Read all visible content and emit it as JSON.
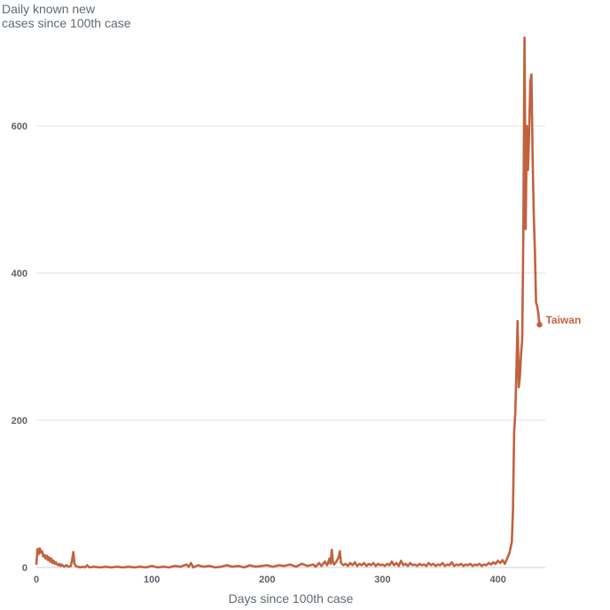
{
  "colors": {
    "series": "#c1623e",
    "grid": "#e3e3e3",
    "text": "#5f6a72"
  },
  "chart_data": {
    "type": "line",
    "title": "",
    "ylabel": "Daily known new\ncases since 100th case",
    "xlabel": "Days since 100th case",
    "xlim": [
      0,
      441
    ],
    "ylim": [
      0,
      735
    ],
    "x_ticks": [
      0,
      100,
      200,
      300,
      400
    ],
    "y_ticks": [
      0,
      200,
      400,
      600
    ],
    "grid": "horizontal",
    "series": [
      {
        "name": "Taiwan",
        "label_position": "end",
        "points": [
          [
            0,
            5
          ],
          [
            1,
            25
          ],
          [
            2,
            18
          ],
          [
            3,
            26
          ],
          [
            4,
            20
          ],
          [
            5,
            22
          ],
          [
            6,
            15
          ],
          [
            7,
            17
          ],
          [
            8,
            12
          ],
          [
            9,
            16
          ],
          [
            10,
            10
          ],
          [
            11,
            14
          ],
          [
            12,
            8
          ],
          [
            13,
            12
          ],
          [
            14,
            6
          ],
          [
            15,
            9
          ],
          [
            16,
            5
          ],
          [
            17,
            7
          ],
          [
            18,
            4
          ],
          [
            19,
            3
          ],
          [
            20,
            5
          ],
          [
            21,
            2
          ],
          [
            22,
            4
          ],
          [
            24,
            1
          ],
          [
            26,
            3
          ],
          [
            28,
            1
          ],
          [
            30,
            2
          ],
          [
            31,
            10
          ],
          [
            32,
            21
          ],
          [
            33,
            5
          ],
          [
            34,
            2
          ],
          [
            36,
            1
          ],
          [
            38,
            0
          ],
          [
            40,
            1
          ],
          [
            42,
            0
          ],
          [
            44,
            3
          ],
          [
            46,
            0
          ],
          [
            50,
            1
          ],
          [
            55,
            0
          ],
          [
            60,
            1
          ],
          [
            65,
            0
          ],
          [
            70,
            1
          ],
          [
            75,
            0
          ],
          [
            80,
            1
          ],
          [
            85,
            0
          ],
          [
            90,
            1
          ],
          [
            95,
            0
          ],
          [
            100,
            2
          ],
          [
            105,
            0
          ],
          [
            110,
            1
          ],
          [
            115,
            0
          ],
          [
            120,
            2
          ],
          [
            125,
            1
          ],
          [
            130,
            4
          ],
          [
            132,
            1
          ],
          [
            134,
            6
          ],
          [
            136,
            0
          ],
          [
            140,
            3
          ],
          [
            145,
            1
          ],
          [
            150,
            2
          ],
          [
            155,
            0
          ],
          [
            160,
            1
          ],
          [
            165,
            3
          ],
          [
            170,
            1
          ],
          [
            175,
            2
          ],
          [
            180,
            0
          ],
          [
            185,
            3
          ],
          [
            190,
            1
          ],
          [
            195,
            2
          ],
          [
            200,
            3
          ],
          [
            205,
            1
          ],
          [
            210,
            3
          ],
          [
            215,
            2
          ],
          [
            220,
            4
          ],
          [
            225,
            1
          ],
          [
            230,
            5
          ],
          [
            235,
            2
          ],
          [
            240,
            4
          ],
          [
            242,
            1
          ],
          [
            245,
            6
          ],
          [
            247,
            2
          ],
          [
            250,
            8
          ],
          [
            252,
            3
          ],
          [
            254,
            12
          ],
          [
            255,
            5
          ],
          [
            256,
            24
          ],
          [
            257,
            7
          ],
          [
            258,
            4
          ],
          [
            260,
            8
          ],
          [
            262,
            14
          ],
          [
            263,
            22
          ],
          [
            264,
            6
          ],
          [
            266,
            3
          ],
          [
            268,
            5
          ],
          [
            270,
            2
          ],
          [
            272,
            6
          ],
          [
            274,
            3
          ],
          [
            276,
            7
          ],
          [
            278,
            2
          ],
          [
            280,
            5
          ],
          [
            282,
            3
          ],
          [
            284,
            6
          ],
          [
            286,
            2
          ],
          [
            288,
            5
          ],
          [
            290,
            3
          ],
          [
            292,
            6
          ],
          [
            294,
            2
          ],
          [
            296,
            5
          ],
          [
            298,
            3
          ],
          [
            300,
            4
          ],
          [
            302,
            2
          ],
          [
            304,
            5
          ],
          [
            306,
            3
          ],
          [
            308,
            8
          ],
          [
            310,
            3
          ],
          [
            312,
            6
          ],
          [
            314,
            2
          ],
          [
            316,
            9
          ],
          [
            318,
            3
          ],
          [
            320,
            5
          ],
          [
            322,
            2
          ],
          [
            324,
            6
          ],
          [
            326,
            3
          ],
          [
            328,
            4
          ],
          [
            330,
            2
          ],
          [
            332,
            5
          ],
          [
            334,
            3
          ],
          [
            336,
            4
          ],
          [
            338,
            2
          ],
          [
            340,
            6
          ],
          [
            342,
            3
          ],
          [
            344,
            5
          ],
          [
            346,
            2
          ],
          [
            348,
            4
          ],
          [
            350,
            3
          ],
          [
            352,
            6
          ],
          [
            354,
            2
          ],
          [
            356,
            4
          ],
          [
            358,
            3
          ],
          [
            360,
            7
          ],
          [
            362,
            2
          ],
          [
            364,
            4
          ],
          [
            366,
            3
          ],
          [
            368,
            5
          ],
          [
            370,
            2
          ],
          [
            372,
            4
          ],
          [
            374,
            3
          ],
          [
            376,
            5
          ],
          [
            378,
            2
          ],
          [
            380,
            4
          ],
          [
            382,
            3
          ],
          [
            384,
            5
          ],
          [
            386,
            2
          ],
          [
            388,
            4
          ],
          [
            390,
            3
          ],
          [
            392,
            6
          ],
          [
            394,
            4
          ],
          [
            396,
            7
          ],
          [
            398,
            5
          ],
          [
            400,
            9
          ],
          [
            402,
            6
          ],
          [
            404,
            10
          ],
          [
            406,
            5
          ],
          [
            408,
            12
          ],
          [
            410,
            20
          ],
          [
            412,
            35
          ],
          [
            413,
            80
          ],
          [
            414,
            185
          ],
          [
            415,
            210
          ],
          [
            416,
            270
          ],
          [
            417,
            335
          ],
          [
            418,
            245
          ],
          [
            419,
            260
          ],
          [
            420,
            290
          ],
          [
            421,
            310
          ],
          [
            422,
            460
          ],
          [
            423,
            720
          ],
          [
            424,
            460
          ],
          [
            425,
            600
          ],
          [
            426,
            540
          ],
          [
            427,
            590
          ],
          [
            428,
            660
          ],
          [
            429,
            670
          ],
          [
            430,
            560
          ],
          [
            431,
            480
          ],
          [
            432,
            430
          ],
          [
            433,
            360
          ],
          [
            434,
            355
          ],
          [
            435,
            345
          ],
          [
            436,
            330
          ]
        ]
      }
    ]
  }
}
